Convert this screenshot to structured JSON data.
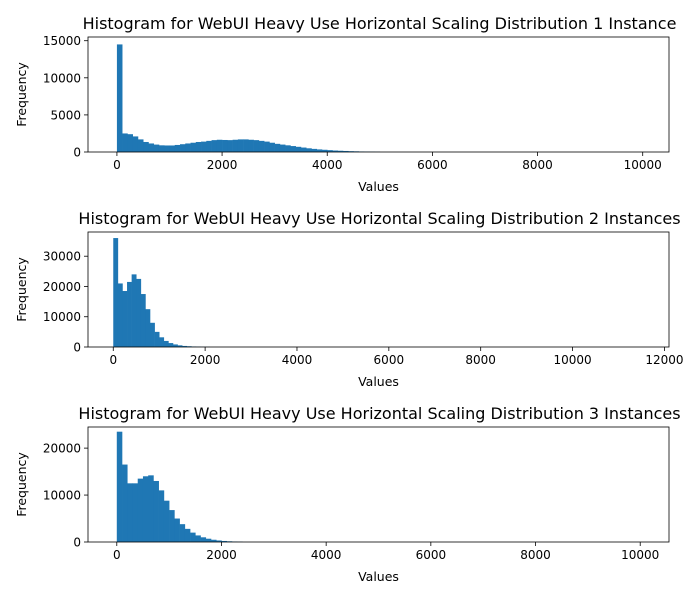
{
  "chart_data": [
    {
      "type": "bar",
      "title": "Histogram for WebUI Heavy Use Horizontal Scaling Distribution 1 Instance",
      "xlabel": "Values",
      "ylabel": "Frequency",
      "xlim": [
        -550,
        10500
      ],
      "ylim": [
        0,
        15500
      ],
      "xticks": [
        0,
        2000,
        4000,
        6000,
        8000,
        10000
      ],
      "xtick_labels": [
        "0",
        "2000",
        "4000",
        "6000",
        "8000",
        "10000"
      ],
      "yticks": [
        0,
        5000,
        10000,
        15000
      ],
      "ytick_labels": [
        "0",
        "5000",
        "10000",
        "15000"
      ],
      "bar_color": "#1f77b4",
      "bin_start": 0,
      "bin_width": 100,
      "values": [
        14500,
        2500,
        2400,
        2100,
        1700,
        1350,
        1150,
        1000,
        900,
        880,
        880,
        950,
        1050,
        1150,
        1250,
        1350,
        1400,
        1500,
        1600,
        1650,
        1620,
        1600,
        1650,
        1700,
        1700,
        1650,
        1600,
        1500,
        1400,
        1250,
        1100,
        1000,
        900,
        800,
        700,
        600,
        500,
        420,
        350,
        300,
        250,
        200,
        170,
        140,
        110,
        90,
        70,
        55,
        45,
        35
      ]
    },
    {
      "type": "bar",
      "title": "Histogram for WebUI Heavy Use Horizontal Scaling Distribution 2 Instances",
      "xlabel": "Values",
      "ylabel": "Frequency",
      "xlim": [
        -550,
        12100
      ],
      "ylim": [
        0,
        38000
      ],
      "xticks": [
        0,
        2000,
        4000,
        6000,
        8000,
        10000,
        12000
      ],
      "xtick_labels": [
        "0",
        "2000",
        "4000",
        "6000",
        "8000",
        "10000",
        "12000"
      ],
      "yticks": [
        0,
        10000,
        20000,
        30000
      ],
      "ytick_labels": [
        "0",
        "10000",
        "20000",
        "30000"
      ],
      "bar_color": "#1f77b4",
      "bin_start": 0,
      "bin_width": 100,
      "values": [
        36000,
        21000,
        18500,
        21500,
        24000,
        22500,
        17500,
        12500,
        8000,
        5000,
        3200,
        2000,
        1300,
        850,
        550,
        350,
        250,
        170,
        110,
        70,
        45
      ]
    },
    {
      "type": "bar",
      "title": "Histogram for WebUI Heavy Use Horizontal Scaling Distribution 3 Instances",
      "xlabel": "Values",
      "ylabel": "Frequency",
      "xlim": [
        -550,
        10550
      ],
      "ylim": [
        0,
        24500
      ],
      "xticks": [
        0,
        2000,
        4000,
        6000,
        8000,
        10000
      ],
      "xtick_labels": [
        "0",
        "2000",
        "4000",
        "6000",
        "8000",
        "10000"
      ],
      "yticks": [
        0,
        10000,
        20000
      ],
      "ytick_labels": [
        "0",
        "10000",
        "20000"
      ],
      "bar_color": "#1f77b4",
      "bin_start": 0,
      "bin_width": 100,
      "values": [
        23500,
        16500,
        12500,
        12500,
        13500,
        14000,
        14200,
        13000,
        11000,
        8800,
        6800,
        5000,
        3800,
        2800,
        2000,
        1400,
        1000,
        700,
        480,
        330,
        220,
        150,
        100,
        65
      ]
    }
  ]
}
